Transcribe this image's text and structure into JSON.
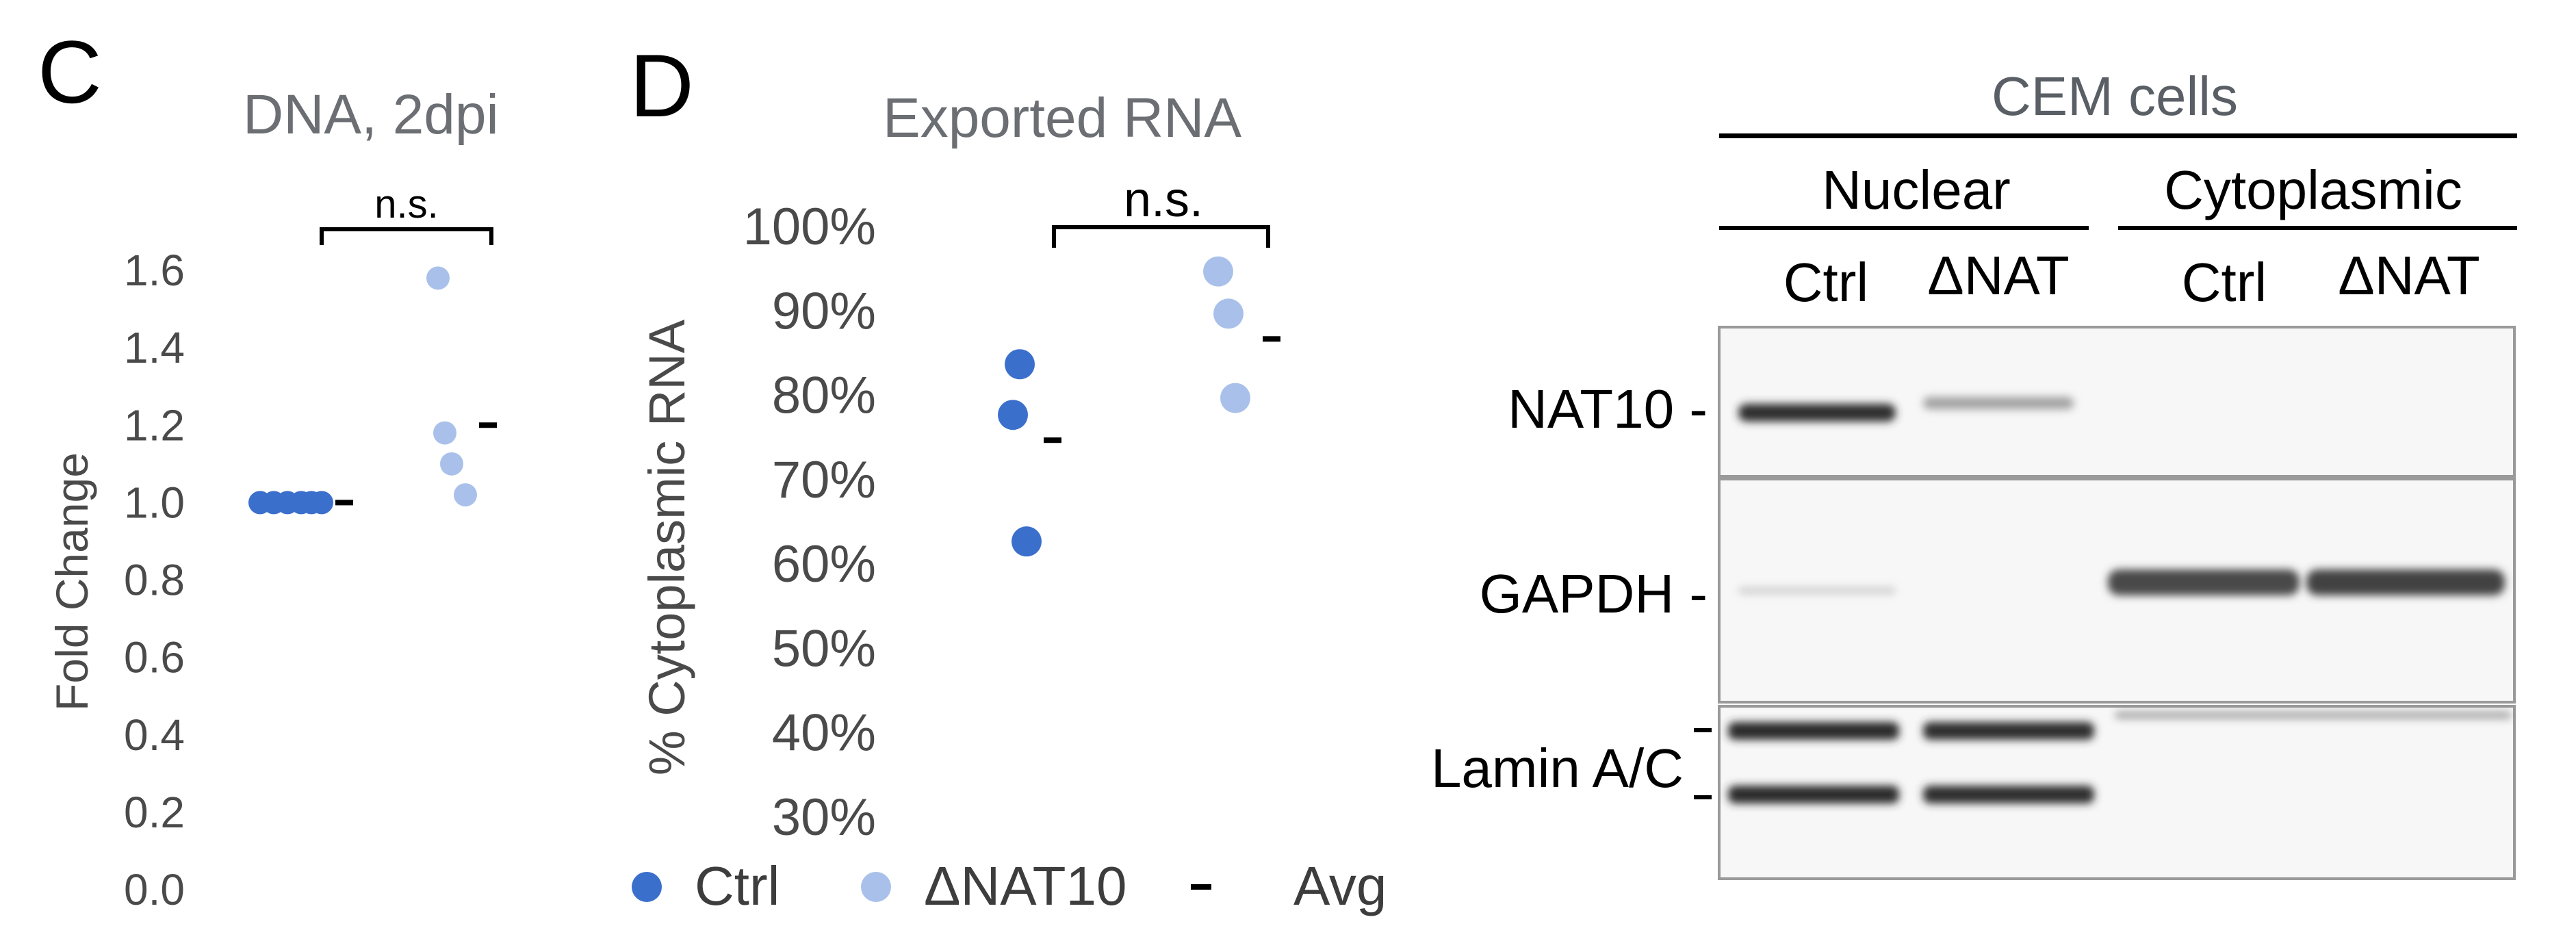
{
  "colors": {
    "ctrl": "#3b6fcc",
    "dnat10": "#a9c1ea",
    "avg": "#000000",
    "title": "#6b6e72",
    "band": "#3a3a3a"
  },
  "chart_data": [
    {
      "panel": "C",
      "type": "scatter",
      "title": "DNA, 2dpi",
      "ylabel": "Fold Change",
      "xlabel": "",
      "ylim": [
        0,
        1.6
      ],
      "yticks": [
        "0.0",
        "0.2",
        "0.4",
        "0.6",
        "0.8",
        "1.0",
        "1.2",
        "1.4",
        "1.6"
      ],
      "series": [
        {
          "name": "Ctrl",
          "x": [
            1,
            1,
            1,
            1,
            1,
            1
          ],
          "y": [
            1.0,
            1.0,
            1.0,
            1.0,
            1.0,
            1.0
          ]
        },
        {
          "name": "ΔNAT10",
          "x": [
            2,
            2,
            2,
            2
          ],
          "y": [
            1.58,
            1.18,
            1.1,
            1.02
          ]
        },
        {
          "name": "Avg",
          "x": [
            1,
            2
          ],
          "y": [
            1.0,
            1.2
          ]
        }
      ],
      "annotation": "n.s.",
      "grid": false
    },
    {
      "panel": "D",
      "type": "scatter",
      "title": "Exported RNA",
      "ylabel": "% Cytoplasmic RNA",
      "xlabel": "",
      "ylim": [
        30,
        100
      ],
      "yticks": [
        "30%",
        "40%",
        "50%",
        "60%",
        "70%",
        "80%",
        "90%",
        "100%"
      ],
      "series": [
        {
          "name": "Ctrl",
          "x": [
            1,
            1,
            1
          ],
          "y": [
            84,
            78,
            63
          ]
        },
        {
          "name": "ΔNAT10",
          "x": [
            2,
            2,
            2
          ],
          "y": [
            95,
            90,
            80
          ]
        },
        {
          "name": "Avg",
          "x": [
            1,
            2
          ],
          "y": [
            75,
            87
          ]
        }
      ],
      "annotation": "n.s.",
      "grid": false
    }
  ],
  "legend": {
    "items": [
      "Ctrl",
      "ΔNAT10",
      "Avg"
    ]
  },
  "blot": {
    "title": "CEM cells",
    "fractions": [
      "Nuclear",
      "Cytoplasmic"
    ],
    "lanes": [
      "Ctrl",
      "ΔNAT",
      "Ctrl",
      "ΔNAT"
    ],
    "proteins": [
      "NAT10 -",
      "GAPDH -",
      "Lamin A/C"
    ]
  }
}
